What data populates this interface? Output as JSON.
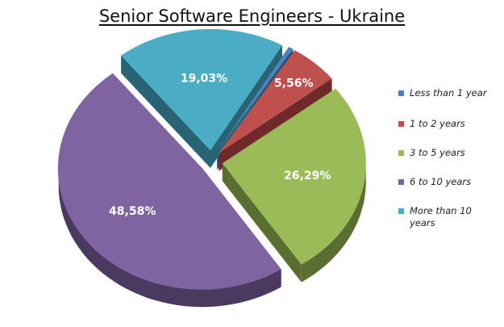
{
  "chart_data": {
    "type": "pie",
    "title": "Senior Software Engineers - Ukraine",
    "slices": [
      {
        "label": "Less than 1 year",
        "value": 0.54,
        "display": "",
        "color": "#4F81BD",
        "dark": "#2c4d75",
        "explode": true
      },
      {
        "label": "1 to 2 years",
        "value": 5.56,
        "display": "5,56%",
        "color": "#C0504D",
        "dark": "#6e2a28",
        "explode": true
      },
      {
        "label": "3 to 5 years",
        "value": 26.29,
        "display": "26,29%",
        "color": "#9BBB59",
        "dark": "#5a6e32",
        "explode": true
      },
      {
        "label": "6 to 10 years",
        "value": 48.58,
        "display": "48,58%",
        "color": "#8064A2",
        "dark": "#4b3a60",
        "explode": true
      },
      {
        "label": "More than 10 years",
        "value": 19.03,
        "display": "19,03%",
        "color": "#4BACC6",
        "dark": "#286474",
        "explode": true
      }
    ],
    "legend": "right",
    "style": "3d-exploded"
  }
}
